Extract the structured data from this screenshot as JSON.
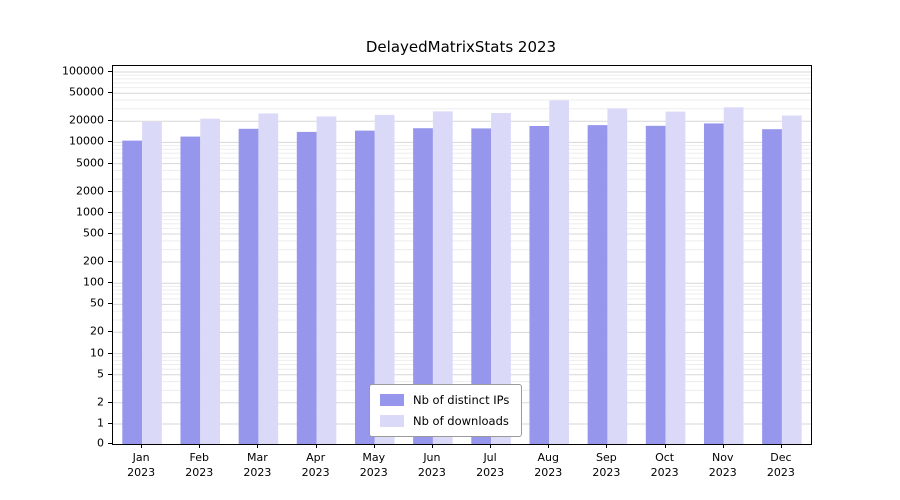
{
  "chart_data": {
    "type": "bar",
    "title": "DelayedMatrixStats 2023",
    "xlabel": "",
    "ylabel": "",
    "scale": "log",
    "grid": true,
    "legend_position": "bottom-center",
    "year_label": "2023",
    "categories": [
      "Jan",
      "Feb",
      "Mar",
      "Apr",
      "May",
      "Jun",
      "Jul",
      "Aug",
      "Sep",
      "Oct",
      "Nov",
      "Dec"
    ],
    "series": [
      {
        "name": "Nb of distinct IPs",
        "color": "#9696ec",
        "values": [
          10600,
          12100,
          15600,
          14100,
          14700,
          15900,
          15800,
          17100,
          17600,
          17200,
          18600,
          15400
        ]
      },
      {
        "name": "Nb of downloads",
        "color": "#dadaf8",
        "values": [
          19600,
          21700,
          25800,
          23400,
          24600,
          27600,
          26200,
          39500,
          30400,
          27400,
          31500,
          24100
        ]
      }
    ],
    "yticks": [
      0,
      1,
      2,
      5,
      10,
      20,
      50,
      100,
      200,
      500,
      1000,
      2000,
      5000,
      10000,
      20000,
      50000,
      100000
    ],
    "ylim": [
      0,
      100000
    ]
  }
}
